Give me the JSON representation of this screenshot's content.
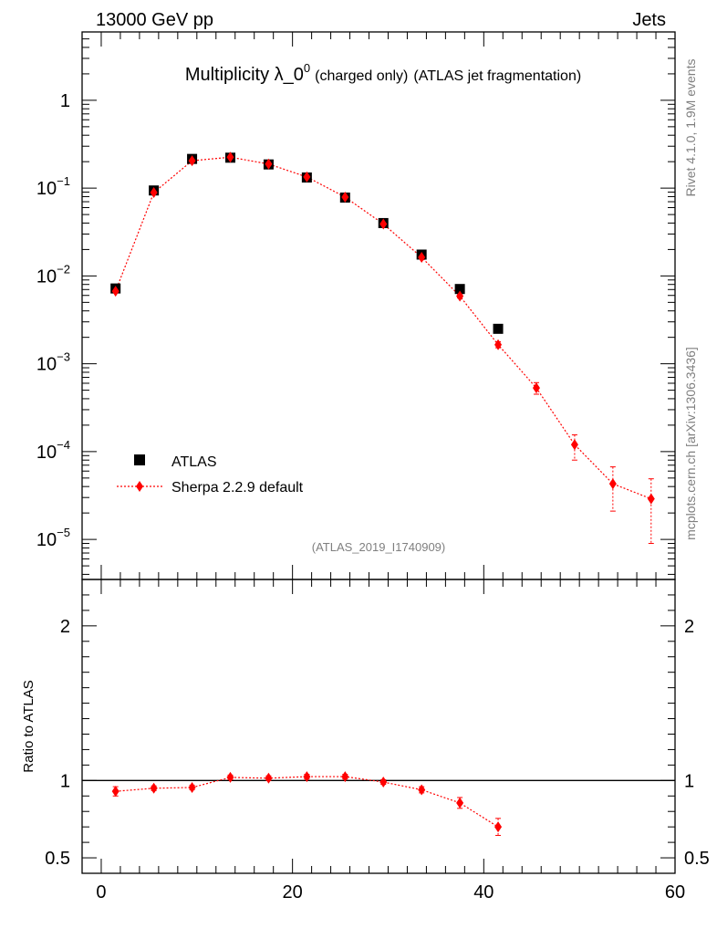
{
  "header": {
    "left": "13000 GeV pp",
    "right": "Jets"
  },
  "title": {
    "main": "Multiplicity λ_0",
    "superscript": "0",
    "small": "(charged only)",
    "rest": "(ATLAS jet fragmentation)"
  },
  "analysis_id": "(ATLAS_2019_I1740909)",
  "side_labels": {
    "rivet": "Rivet 4.1.0,  1.9M events",
    "mcplots": "mcplots.cern.ch [arXiv:1306.3436]"
  },
  "colors": {
    "data": "#000000",
    "mc": "#ff0000",
    "gray_text": "#7f7f7f"
  },
  "chart_data": [
    {
      "type": "scatter",
      "title": "Multiplicity λ_0^0 (charged only) (ATLAS jet fragmentation)",
      "xlabel": "",
      "ylabel": "",
      "yscale": "log",
      "xlim": [
        -2,
        60
      ],
      "ylim": [
        3.5e-06,
        6
      ],
      "y_tick_labels": [
        {
          "value": 1e-05,
          "base": "10",
          "exp": "−5"
        },
        {
          "value": 0.0001,
          "base": "10",
          "exp": "−4"
        },
        {
          "value": 0.001,
          "base": "10",
          "exp": "−3"
        },
        {
          "value": 0.01,
          "base": "10",
          "exp": "−2"
        },
        {
          "value": 0.1,
          "base": "10",
          "exp": "−1"
        },
        {
          "value": 1,
          "base": "1",
          "exp": ""
        }
      ],
      "legend_position": "bottom-left",
      "series": [
        {
          "name": "ATLAS",
          "marker": "square",
          "x": [
            1.5,
            5.5,
            9.5,
            13.5,
            17.5,
            21.5,
            25.5,
            29.5,
            33.5,
            37.5,
            41.5
          ],
          "y": [
            0.0072,
            0.094,
            0.215,
            0.222,
            0.186,
            0.132,
            0.078,
            0.04,
            0.0175,
            0.0071,
            0.0025
          ]
        },
        {
          "name": "Sherpa 2.2.9 default",
          "marker": "diamond",
          "line": "dotted",
          "x": [
            1.5,
            5.5,
            9.5,
            13.5,
            17.5,
            21.5,
            25.5,
            29.5,
            33.5,
            37.5,
            41.5,
            45.5,
            49.5,
            53.5,
            57.5
          ],
          "y": [
            0.0067,
            0.089,
            0.205,
            0.225,
            0.188,
            0.134,
            0.079,
            0.039,
            0.0163,
            0.0059,
            0.00165,
            0.00053,
            0.00012,
            4.3e-05,
            2.9e-05
          ],
          "yerr_low": [
            0.0003,
            0.002,
            0.004,
            0.004,
            0.003,
            0.002,
            0.0015,
            0.0008,
            0.0005,
            0.0003,
            0.00013,
            8e-05,
            4e-05,
            2.2e-05,
            2e-05
          ],
          "yerr_high": [
            0.0003,
            0.002,
            0.004,
            0.004,
            0.003,
            0.002,
            0.0015,
            0.0008,
            0.0005,
            0.0003,
            0.00013,
            8e-05,
            3.5e-05,
            2.4e-05,
            2e-05
          ]
        }
      ]
    },
    {
      "type": "scatter",
      "xlabel": "",
      "ylabel": "Ratio to ATLAS",
      "xlim": [
        -2,
        60
      ],
      "ylim": [
        0.4,
        2.3
      ],
      "x_tick_labels": [
        "0",
        "20",
        "40",
        "60"
      ],
      "y_tick_labels": [
        "0.5",
        "1",
        "2"
      ],
      "reference_line": 1,
      "series": [
        {
          "name": "Sherpa 2.2.9 default",
          "marker": "diamond",
          "line": "dotted",
          "x": [
            1.5,
            5.5,
            9.5,
            13.5,
            17.5,
            21.5,
            25.5,
            29.5,
            33.5,
            37.5,
            41.5
          ],
          "y": [
            0.93,
            0.95,
            0.955,
            1.02,
            1.015,
            1.025,
            1.025,
            0.99,
            0.94,
            0.855,
            0.7
          ],
          "yerr": [
            0.03,
            0.015,
            0.015,
            0.015,
            0.015,
            0.015,
            0.015,
            0.015,
            0.02,
            0.035,
            0.055
          ]
        }
      ]
    }
  ]
}
